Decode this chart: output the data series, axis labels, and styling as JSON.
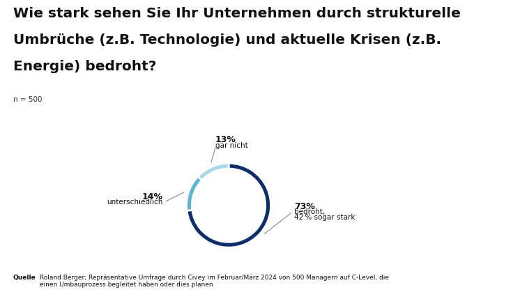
{
  "title": "Wie stark sehen Sie Ihr Unternehmen durch strukturelle\nUmbrüche (z.B. Technologie) und aktuelle Krisen (z.B.\nEnergie) bedroht?",
  "n_label": "n = 500",
  "slices": [
    73,
    14,
    13
  ],
  "colors": [
    "#0d2d6b",
    "#5ab4d6",
    "#a8d8ea"
  ],
  "source_bold": "Quelle",
  "source_text": " Roland Berger; Repräsentative Umfrage durch Civey im Februar/März 2024 von 500 Managern auf C-Level, die\n einen Umbauprozess begleitet haben oder dies planen",
  "background_color": "#ffffff",
  "donut_width": 0.13,
  "start_angle": 90,
  "label_73_pct": "73%",
  "label_73_sub1": "bedroht,",
  "label_73_sub2": "42 % sogar stark",
  "label_14_pct": "14%",
  "label_14_sub": "unterschiedlich",
  "label_13_pct": "13%",
  "label_13_sub": "gar nicht"
}
